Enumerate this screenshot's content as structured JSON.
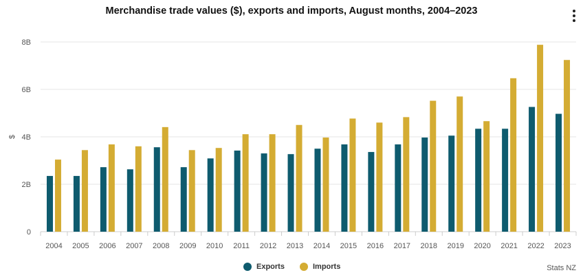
{
  "header": {
    "title": "Merchandise trade values ($), exports and imports, August months, 2004–2023"
  },
  "menu_icon": "vertical-dots-icon",
  "source": "Stats NZ",
  "chart_data": {
    "type": "bar",
    "title": "Merchandise trade values ($), exports and imports, August months, 2004–2023",
    "xlabel": "",
    "ylabel": "$",
    "ylim": [
      0,
      8
    ],
    "y_ticks": [
      "0",
      "2B",
      "4B",
      "6B",
      "8B"
    ],
    "grid": true,
    "legend_position": "bottom",
    "categories": [
      "2004",
      "2005",
      "2006",
      "2007",
      "2008",
      "2009",
      "2010",
      "2011",
      "2012",
      "2013",
      "2014",
      "2015",
      "2016",
      "2017",
      "2018",
      "2019",
      "2020",
      "2021",
      "2022",
      "2023"
    ],
    "series": [
      {
        "name": "Exports",
        "color": "#0e5b6e",
        "values": [
          2.35,
          2.35,
          2.72,
          2.63,
          3.56,
          2.72,
          3.09,
          3.42,
          3.3,
          3.27,
          3.5,
          3.68,
          3.36,
          3.68,
          3.97,
          4.05,
          4.34,
          4.34,
          5.26,
          4.97
        ]
      },
      {
        "name": "Imports",
        "color": "#d4ac33",
        "values": [
          3.04,
          3.44,
          3.68,
          3.6,
          4.41,
          3.44,
          3.53,
          4.11,
          4.11,
          4.5,
          3.97,
          4.77,
          4.6,
          4.83,
          5.52,
          5.7,
          4.66,
          6.47,
          7.88,
          7.24
        ]
      }
    ]
  }
}
